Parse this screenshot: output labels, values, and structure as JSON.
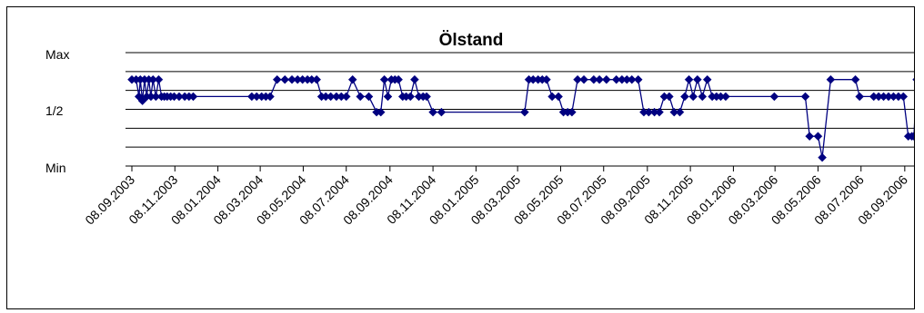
{
  "chart_data": {
    "type": "line",
    "title": "Ölstand",
    "xlabel": "",
    "ylabel": "",
    "y_tick_labels": [
      "Max",
      "1/2",
      "Min"
    ],
    "y_tick_values": [
      8,
      4,
      0
    ],
    "ylim": [
      0,
      8
    ],
    "x_tick_labels": [
      "08.09.2003",
      "08.11.2003",
      "08.01.2004",
      "08.03.2004",
      "08.05.2004",
      "08.07.2004",
      "08.09.2004",
      "08.11.2004",
      "08.01.2005",
      "08.03.2005",
      "08.05.2005",
      "08.07.2005",
      "08.09.2005",
      "08.11.2005",
      "08.01.2006",
      "08.03.2006",
      "08.05.2006",
      "08.07.2006",
      "08.09.2006"
    ],
    "grid": "horizontal",
    "legend": "none",
    "line_color": "#000080",
    "series": [
      {
        "x": [
          "2003-09-08",
          "2003-09-14",
          "2003-09-18",
          "2003-09-20",
          "2003-09-23",
          "2003-09-26",
          "2003-09-29",
          "2003-10-02",
          "2003-10-05",
          "2003-10-08",
          "2003-10-12",
          "2003-10-16",
          "2003-10-20",
          "2003-10-24",
          "2003-10-28",
          "2003-11-02",
          "2003-11-07",
          "2003-11-14",
          "2003-11-22",
          "2003-11-28",
          "2003-12-04",
          "2004-02-25",
          "2004-03-03",
          "2004-03-10",
          "2004-03-16",
          "2004-03-22",
          "2004-04-01",
          "2004-04-12",
          "2004-04-22",
          "2004-04-30",
          "2004-05-07",
          "2004-05-14",
          "2004-05-20",
          "2004-05-27",
          "2004-06-03",
          "2004-06-09",
          "2004-06-16",
          "2004-06-24",
          "2004-07-01",
          "2004-07-08",
          "2004-07-17",
          "2004-07-28",
          "2004-08-09",
          "2004-08-20",
          "2004-08-26",
          "2004-08-31",
          "2004-09-05",
          "2004-09-10",
          "2004-09-15",
          "2004-09-20",
          "2004-09-26",
          "2004-10-01",
          "2004-10-07",
          "2004-10-13",
          "2004-10-19",
          "2004-10-25",
          "2004-10-30",
          "2004-11-08",
          "2004-11-20",
          "2005-03-18",
          "2005-03-24",
          "2005-03-30",
          "2005-04-06",
          "2005-04-12",
          "2005-04-18",
          "2005-04-26",
          "2005-05-05",
          "2005-05-12",
          "2005-05-18",
          "2005-05-24",
          "2005-06-01",
          "2005-06-10",
          "2005-06-24",
          "2005-07-02",
          "2005-07-12",
          "2005-07-26",
          "2005-08-03",
          "2005-08-10",
          "2005-08-17",
          "2005-08-26",
          "2005-09-03",
          "2005-09-10",
          "2005-09-18",
          "2005-09-25",
          "2005-10-02",
          "2005-10-09",
          "2005-10-16",
          "2005-10-24",
          "2005-10-31",
          "2005-11-06",
          "2005-11-12",
          "2005-11-18",
          "2005-11-25",
          "2005-12-02",
          "2005-12-09",
          "2005-12-15",
          "2005-12-21",
          "2005-12-28",
          "2006-03-07",
          "2006-04-20",
          "2006-04-26",
          "2006-05-08",
          "2006-05-14",
          "2006-05-26",
          "2006-06-30",
          "2006-07-06",
          "2006-07-26",
          "2006-08-02",
          "2006-08-09",
          "2006-08-16",
          "2006-08-23",
          "2006-08-30",
          "2006-09-06",
          "2006-09-13",
          "2006-09-18",
          "2006-09-21",
          "2006-09-25",
          "2006-09-28",
          "2006-10-02",
          "2006-10-06",
          "2006-10-10",
          "2006-10-14",
          "2006-10-18",
          "2006-10-22",
          "2006-10-26"
        ],
        "y": [
          6.1,
          6.1,
          4.9,
          6.1,
          4.6,
          6.1,
          4.9,
          6.1,
          4.9,
          6.1,
          4.9,
          6.1,
          4.9,
          4.9,
          4.9,
          4.9,
          4.9,
          4.9,
          4.9,
          4.9,
          4.9,
          4.9,
          4.9,
          4.9,
          4.9,
          4.9,
          6.1,
          6.1,
          6.1,
          6.1,
          6.1,
          6.1,
          6.1,
          6.1,
          4.9,
          4.9,
          4.9,
          4.9,
          4.9,
          4.9,
          6.1,
          4.9,
          4.9,
          3.8,
          3.8,
          6.1,
          4.9,
          6.1,
          6.1,
          6.1,
          4.9,
          4.9,
          4.9,
          6.1,
          4.9,
          4.9,
          4.9,
          3.8,
          3.8,
          3.8,
          6.1,
          6.1,
          6.1,
          6.1,
          6.1,
          4.9,
          4.9,
          3.8,
          3.8,
          3.8,
          6.1,
          6.1,
          6.1,
          6.1,
          6.1,
          6.1,
          6.1,
          6.1,
          6.1,
          6.1,
          3.8,
          3.8,
          3.8,
          3.8,
          4.9,
          4.9,
          3.8,
          3.8,
          4.9,
          6.1,
          4.9,
          6.1,
          4.9,
          6.1,
          4.9,
          4.9,
          4.9,
          4.9,
          4.9,
          4.9,
          2.1,
          2.1,
          0.6,
          6.1,
          6.1,
          4.9,
          4.9,
          4.9,
          4.9,
          4.9,
          4.9,
          4.9,
          4.9,
          2.1,
          2.1,
          2.1,
          6.1,
          4.9,
          6.1,
          6.1,
          4.9,
          4.9,
          4.9,
          4.9,
          4.9
        ]
      }
    ]
  }
}
